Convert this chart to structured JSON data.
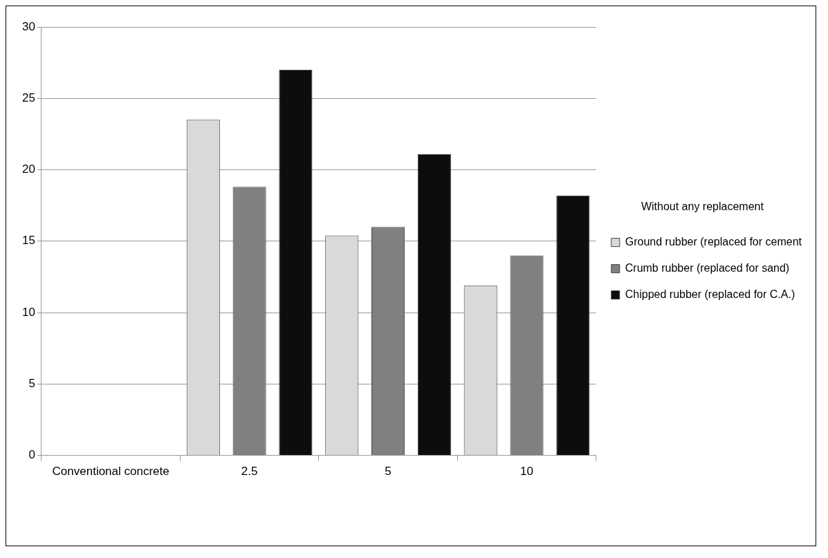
{
  "chart_data": {
    "type": "bar",
    "categories": [
      "Conventional concrete",
      "2.5",
      "5",
      "10"
    ],
    "legend_title": "Without any replacement",
    "series": [
      {
        "name": "Ground rubber (replaced for cement",
        "color": "#d9d9d9",
        "values": [
          null,
          23.5,
          15.4,
          11.9
        ]
      },
      {
        "name": "Crumb rubber (replaced for sand)",
        "color": "#808080",
        "values": [
          null,
          18.8,
          16,
          14
        ]
      },
      {
        "name": "Chipped rubber (replaced for C.A.)",
        "color": "#0d0d0d",
        "values": [
          null,
          27,
          21.1,
          18.2
        ]
      }
    ],
    "ylim": [
      0,
      30
    ],
    "yticks": [
      0,
      5,
      10,
      15,
      20,
      25,
      30
    ],
    "grid": "y",
    "legend": "right"
  }
}
